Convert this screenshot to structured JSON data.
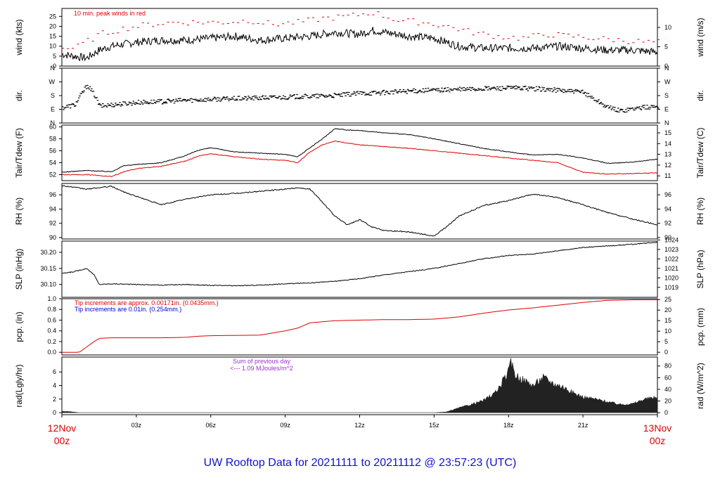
{
  "title": "UW Rooftop Data for 20211111  to  20211112 @ 23:57:23  (UTC)",
  "colors": {
    "primary": "#000000",
    "red": "#dd0000",
    "blue": "#0000cc",
    "purple": "#9933cc",
    "title": "#1111cc",
    "fill": "#222222"
  },
  "x_axis": {
    "start_label": [
      "12Nov",
      "00z"
    ],
    "end_label": [
      "13Nov",
      "00z"
    ],
    "ticks": [
      {
        "hour": 3,
        "label": "03z"
      },
      {
        "hour": 6,
        "label": "06z"
      },
      {
        "hour": 9,
        "label": "09z"
      },
      {
        "hour": 12,
        "label": "12z"
      },
      {
        "hour": 15,
        "label": "15z"
      },
      {
        "hour": 18,
        "label": "18z"
      },
      {
        "hour": 21,
        "label": "21z"
      }
    ],
    "range_hours": [
      0,
      24
    ]
  },
  "chart_data": [
    {
      "type": "line",
      "id": "wind",
      "ylabel": "wind (kts)",
      "ylabel_right": "wind (m/s)",
      "ylim": [
        0,
        29
      ],
      "left_ticks": [
        0,
        5,
        10,
        15,
        20,
        25
      ],
      "right_ticks": [
        {
          "value": 0,
          "pos": 0
        },
        {
          "value": 5,
          "pos": 9.72
        },
        {
          "value": 10,
          "pos": 19.44
        }
      ],
      "annotation": "10 min. peak winds in red",
      "series": [
        {
          "role": "mean",
          "color": "#000000",
          "x": [
            0,
            0.5,
            1,
            1.5,
            2,
            3,
            4,
            5,
            6,
            7,
            8,
            9,
            10,
            10.5,
            11,
            12,
            12.5,
            13,
            13.5,
            14,
            15,
            16,
            17,
            18,
            19,
            20,
            21,
            22,
            23,
            24
          ],
          "y": [
            6,
            5,
            4,
            8,
            10,
            12,
            13,
            13,
            14,
            15,
            13,
            14,
            15,
            16,
            17,
            16,
            18,
            17,
            16,
            15,
            14,
            10,
            9,
            9,
            9,
            10,
            9,
            8,
            8,
            7
          ]
        },
        {
          "role": "peak",
          "color": "#dd0000",
          "x": [
            0.5,
            1.5,
            2.5,
            3.5,
            4.5,
            5.5,
            6.5,
            7.5,
            8.5,
            9.5,
            10.5,
            11.5,
            12.5,
            13.5,
            14.5,
            15.5,
            16.5,
            17.5,
            18.5,
            19.5,
            20.5,
            21.5,
            22.5,
            23.5
          ],
          "y": [
            9,
            16,
            19,
            21,
            22,
            22,
            22,
            23,
            21,
            22,
            24,
            25,
            27,
            23,
            22,
            20,
            17,
            15,
            14,
            16,
            15,
            14,
            13,
            12
          ]
        }
      ]
    },
    {
      "type": "scatter",
      "id": "dir",
      "ylabel": "dir.",
      "ylabel_right": "dir.",
      "ylim": [
        0,
        360
      ],
      "ticks": [
        {
          "label": "N",
          "value": 0
        },
        {
          "label": "E",
          "value": 90
        },
        {
          "label": "S",
          "value": 180
        },
        {
          "label": "W",
          "value": 270
        },
        {
          "label": "N",
          "value": 360
        }
      ],
      "series": [
        {
          "color": "#000000",
          "x": [
            0,
            0.5,
            0.8,
            1,
            1.3,
            1.5,
            2,
            3,
            4,
            5,
            6,
            7,
            8,
            9,
            10,
            11,
            12,
            13,
            14,
            15,
            16,
            17,
            18,
            19,
            20,
            21,
            21.5,
            22,
            22.5,
            23,
            24
          ],
          "y": [
            100,
            120,
            200,
            250,
            180,
            110,
            120,
            135,
            140,
            150,
            155,
            160,
            165,
            170,
            175,
            180,
            195,
            200,
            210,
            215,
            220,
            225,
            230,
            225,
            215,
            200,
            150,
            100,
            80,
            95,
            110
          ]
        }
      ]
    },
    {
      "type": "line",
      "id": "temp",
      "ylabel": "Tair/Tdew (F)",
      "ylabel_right": "Tair/Tdew (C)",
      "ylim": [
        51,
        60.3
      ],
      "left_ticks": [
        52,
        54,
        56,
        58,
        60
      ],
      "right_ticks": [
        {
          "value": 11,
          "pos": 51.8
        },
        {
          "value": 12,
          "pos": 53.6
        },
        {
          "value": 13,
          "pos": 55.4
        },
        {
          "value": 14,
          "pos": 57.2
        },
        {
          "value": 15,
          "pos": 59.0
        }
      ],
      "series": [
        {
          "name": "Tair",
          "color": "#000000",
          "x": [
            0,
            1,
            2,
            2.5,
            3,
            4,
            5,
            5.5,
            6,
            7,
            8,
            9,
            9.5,
            10,
            10.5,
            11,
            11.5,
            12,
            13,
            14,
            15,
            16,
            17,
            18,
            19,
            20,
            21,
            22,
            23,
            24
          ],
          "y": [
            52.4,
            52.7,
            52.5,
            53.5,
            53.7,
            54.0,
            55.2,
            56.1,
            56.5,
            55.8,
            55.6,
            55.4,
            55.0,
            56.5,
            58.0,
            59.7,
            59.5,
            59.4,
            59.0,
            58.7,
            58.0,
            57.2,
            56.4,
            55.8,
            55.3,
            55.4,
            54.8,
            53.9,
            54.1,
            54.6
          ]
        },
        {
          "name": "Tdew",
          "color": "#dd0000",
          "x": [
            0,
            1,
            2,
            2.5,
            3,
            4,
            5,
            5.5,
            6,
            7,
            8,
            9,
            9.5,
            10,
            10.5,
            11,
            11.5,
            12,
            13,
            14,
            15,
            16,
            17,
            18,
            19,
            20,
            21,
            22,
            23,
            24
          ],
          "y": [
            52.0,
            52.0,
            51.7,
            52.5,
            53.0,
            53.4,
            54.3,
            55.1,
            55.5,
            55.0,
            54.6,
            54.4,
            54.0,
            55.8,
            57.0,
            57.6,
            57.3,
            57.0,
            56.7,
            56.4,
            56.0,
            55.6,
            55.2,
            54.8,
            54.4,
            54.0,
            52.4,
            52.1,
            52.2,
            52.3
          ]
        }
      ]
    },
    {
      "type": "line",
      "id": "rh",
      "ylabel": "RH (%)",
      "ylabel_right": "RH (%)",
      "ylim": [
        89.8,
        97.6
      ],
      "left_ticks": [
        90,
        92,
        94,
        96
      ],
      "right_ticks": [
        {
          "value": 90,
          "pos": 90
        },
        {
          "value": 92,
          "pos": 92
        },
        {
          "value": 94,
          "pos": 94
        },
        {
          "value": 96,
          "pos": 96
        }
      ],
      "series": [
        {
          "color": "#000000",
          "x": [
            0,
            1,
            2,
            2.5,
            3,
            3.5,
            4,
            5,
            6,
            7,
            8,
            9,
            9.5,
            10,
            10.5,
            11,
            11.5,
            12,
            12.5,
            13,
            14,
            15,
            15.5,
            16,
            17,
            18,
            19,
            20,
            21,
            22,
            23,
            24
          ],
          "y": [
            97.3,
            96.8,
            97.2,
            96.4,
            95.8,
            95.2,
            94.6,
            95.4,
            96.0,
            96.2,
            96.5,
            96.8,
            97.0,
            96.8,
            95.0,
            93.0,
            91.8,
            92.5,
            91.5,
            91.0,
            90.8,
            90.2,
            91.5,
            93.0,
            94.5,
            95.2,
            96.1,
            95.6,
            94.6,
            93.5,
            92.6,
            91.8
          ]
        }
      ]
    },
    {
      "type": "line",
      "id": "slp",
      "ylabel": "SLP (inHg)",
      "ylabel_right": "SLP (hPa)",
      "ylim": [
        30.06,
        30.235
      ],
      "left_ticks": [
        30.1,
        30.15,
        30.2
      ],
      "left_tick_labels": [
        "30.10",
        "30.15",
        "30.20"
      ],
      "right_ticks": [
        {
          "value": 1019,
          "pos": 30.091
        },
        {
          "value": 1020,
          "pos": 30.1205
        },
        {
          "value": 1021,
          "pos": 30.15
        },
        {
          "value": 1022,
          "pos": 30.1795
        },
        {
          "value": 1023,
          "pos": 30.209
        },
        {
          "value": 1024,
          "pos": 30.2385
        }
      ],
      "series": [
        {
          "color": "#000000",
          "x": [
            0,
            0.5,
            1,
            1.3,
            1.5,
            2,
            3,
            4,
            5,
            6,
            7,
            8,
            9,
            10,
            11,
            12,
            13,
            14,
            15,
            16,
            17,
            18,
            19,
            20,
            21,
            22,
            23,
            24
          ],
          "y": [
            30.134,
            30.14,
            30.15,
            30.13,
            30.1,
            30.102,
            30.1,
            30.098,
            30.1,
            30.097,
            30.096,
            30.098,
            30.102,
            30.105,
            30.11,
            30.118,
            30.13,
            30.14,
            30.15,
            30.165,
            30.18,
            30.19,
            30.195,
            30.205,
            30.215,
            30.22,
            30.225,
            30.232
          ]
        }
      ]
    },
    {
      "type": "line",
      "id": "pcp",
      "ylabel": "pcp. (in)",
      "ylabel_right": "pcp. (mm)",
      "ylim": [
        -0.05,
        1.0
      ],
      "left_ticks": [
        0.0,
        0.2,
        0.4,
        0.6,
        0.8,
        1.0
      ],
      "left_tick_labels": [
        "0.0",
        "0.2",
        "0.4",
        "0.6",
        "0.8",
        "1.0"
      ],
      "right_ticks": [
        {
          "value": 0,
          "pos": 0
        },
        {
          "value": 5,
          "pos": 0.1969
        },
        {
          "value": 10,
          "pos": 0.3937
        },
        {
          "value": 15,
          "pos": 0.5906
        },
        {
          "value": 20,
          "pos": 0.7874
        },
        {
          "value": 25,
          "pos": 0.9843
        }
      ],
      "annotations": [
        {
          "text": "Tip increments are approx. 0.00171in. (0.0435mm.)",
          "color": "#dd0000"
        },
        {
          "text": "Tip increments are 0.01in. (0.254mm.)",
          "color": "#0000cc"
        }
      ],
      "series": [
        {
          "color": "#dd0000",
          "x": [
            0,
            0.7,
            1.0,
            1.3,
            1.5,
            2,
            4,
            5,
            5.5,
            6,
            8,
            9,
            9.5,
            10,
            11,
            12,
            13,
            14,
            15,
            16,
            17,
            18,
            19,
            20,
            21,
            22,
            23,
            24
          ],
          "y": [
            0,
            0,
            0.1,
            0.2,
            0.26,
            0.27,
            0.27,
            0.28,
            0.3,
            0.31,
            0.32,
            0.4,
            0.45,
            0.55,
            0.59,
            0.6,
            0.61,
            0.61,
            0.62,
            0.66,
            0.73,
            0.79,
            0.83,
            0.88,
            0.93,
            0.97,
            0.98,
            0.98
          ]
        }
      ]
    },
    {
      "type": "area",
      "id": "rad",
      "ylabel": "rad(Lgly/hr)",
      "ylabel_right": "rad (W/m^2)",
      "ylim": [
        -0.3,
        8.2
      ],
      "left_ticks": [
        0,
        2,
        4,
        6
      ],
      "right_ticks": [
        {
          "value": 0,
          "pos": 0
        },
        {
          "value": 20,
          "pos": 1.72
        },
        {
          "value": 40,
          "pos": 3.44
        },
        {
          "value": 60,
          "pos": 5.16
        },
        {
          "value": 80,
          "pos": 6.88
        }
      ],
      "annotation": [
        "Sum of previous day",
        "<--- 1.09 MJoules/m^2"
      ],
      "series": [
        {
          "color": "#222222",
          "x": [
            0,
            0.3,
            0.7,
            0.75,
            15,
            15.5,
            16,
            16.5,
            17,
            17.5,
            18,
            18.1,
            18.3,
            18.6,
            19,
            19.4,
            19.8,
            20.2,
            20.6,
            21,
            21.5,
            22,
            22.5,
            23,
            23.5,
            24
          ],
          "y": [
            0.2,
            0.15,
            0,
            0,
            0,
            0.1,
            0.7,
            1.2,
            1.8,
            3.0,
            6.0,
            7.3,
            5.5,
            4.8,
            4.0,
            5.2,
            4.3,
            3.8,
            2.9,
            2.3,
            2.0,
            1.6,
            1.2,
            1.3,
            2.0,
            2.3
          ]
        }
      ]
    }
  ]
}
